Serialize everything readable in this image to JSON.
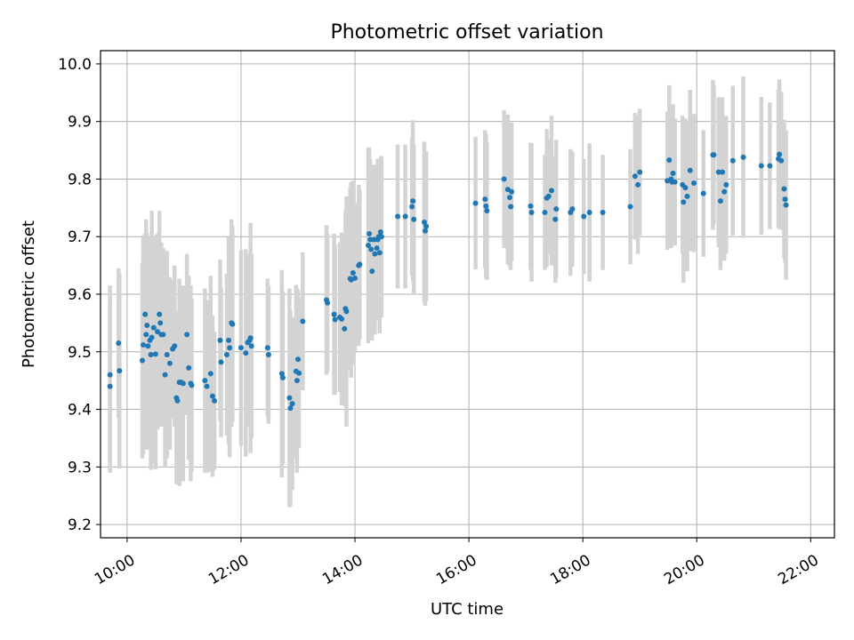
{
  "chart_data": {
    "type": "scatter",
    "title": "Photometric offset variation",
    "xlabel": "UTC time",
    "ylabel": "Photometric offset",
    "xlim": [
      "09:32",
      "22:25"
    ],
    "ylim": [
      9.177,
      10.023
    ],
    "x_ticks": [
      "10:00",
      "12:00",
      "14:00",
      "16:00",
      "18:00",
      "20:00",
      "22:00"
    ],
    "y_ticks": [
      "9.2",
      "9.3",
      "9.4",
      "9.5",
      "9.6",
      "9.7",
      "9.8",
      "9.9",
      "10.0"
    ],
    "grid": true,
    "colors": {
      "points": "#1f77b4",
      "errorbars": "#d3d3d3",
      "grid": "#b0b0b0"
    },
    "points": [
      [
        "09:42",
        9.46,
        0.155
      ],
      [
        "09:42",
        9.44,
        0.15
      ],
      [
        "09:51",
        9.515,
        0.13
      ],
      [
        "09:52",
        9.467,
        0.17
      ],
      [
        "10:16",
        9.485,
        0.17
      ],
      [
        "10:17",
        9.512,
        0.19
      ],
      [
        "10:19",
        9.565,
        0.14
      ],
      [
        "10:20",
        9.53,
        0.2
      ],
      [
        "10:21",
        9.546,
        0.16
      ],
      [
        "10:22",
        9.51,
        0.18
      ],
      [
        "10:24",
        9.52,
        0.18
      ],
      [
        "10:25",
        9.495,
        0.2
      ],
      [
        "10:26",
        9.525,
        0.22
      ],
      [
        "10:28",
        9.542,
        0.16
      ],
      [
        "10:30",
        9.496,
        0.2
      ],
      [
        "10:32",
        9.535,
        0.17
      ],
      [
        "10:34",
        9.565,
        0.18
      ],
      [
        "10:35",
        9.55,
        0.14
      ],
      [
        "10:36",
        9.53,
        0.16
      ],
      [
        "10:38",
        9.53,
        0.15
      ],
      [
        "10:40",
        9.46,
        0.16
      ],
      [
        "10:42",
        9.495,
        0.18
      ],
      [
        "10:45",
        9.48,
        0.15
      ],
      [
        "10:48",
        9.505,
        0.12
      ],
      [
        "10:50",
        9.51,
        0.14
      ],
      [
        "10:52",
        9.42,
        0.15
      ],
      [
        "10:53",
        9.415,
        0.14
      ],
      [
        "10:55",
        9.447,
        0.18
      ],
      [
        "10:57",
        9.447,
        0.16
      ],
      [
        "10:59",
        9.445,
        0.17
      ],
      [
        "11:03",
        9.53,
        0.14
      ],
      [
        "11:05",
        9.472,
        0.16
      ],
      [
        "11:07",
        9.445,
        0.17
      ],
      [
        "11:08",
        9.442,
        0.15
      ],
      [
        "11:22",
        9.45,
        0.16
      ],
      [
        "11:24",
        9.44,
        0.15
      ],
      [
        "11:28",
        9.462,
        0.17
      ],
      [
        "11:30",
        9.423,
        0.14
      ],
      [
        "11:32",
        9.415,
        0.12
      ],
      [
        "11:38",
        9.52,
        0.14
      ],
      [
        "11:39",
        9.482,
        0.13
      ],
      [
        "11:45",
        9.495,
        0.14
      ],
      [
        "11:47",
        9.52,
        0.18
      ],
      [
        "11:48",
        9.507,
        0.19
      ],
      [
        "11:50",
        9.55,
        0.18
      ],
      [
        "11:51",
        9.548,
        0.17
      ],
      [
        "12:00",
        9.507,
        0.17
      ],
      [
        "12:05",
        9.498,
        0.18
      ],
      [
        "12:07",
        9.516,
        0.14
      ],
      [
        "12:09",
        9.52,
        0.15
      ],
      [
        "12:10",
        9.524,
        0.2
      ],
      [
        "12:11",
        9.51,
        0.16
      ],
      [
        "12:28",
        9.507,
        0.12
      ],
      [
        "12:29",
        9.495,
        0.12
      ],
      [
        "12:43",
        9.462,
        0.18
      ],
      [
        "12:44",
        9.455,
        0.15
      ],
      [
        "12:51",
        9.42,
        0.19
      ],
      [
        "12:52",
        9.402,
        0.17
      ],
      [
        "12:54",
        9.41,
        0.15
      ],
      [
        "12:58",
        9.466,
        0.15
      ],
      [
        "12:59",
        9.45,
        0.16
      ],
      [
        "13:00",
        9.487,
        0.12
      ],
      [
        "13:01",
        9.463,
        0.13
      ],
      [
        "13:05",
        9.553,
        0.12
      ],
      [
        "13:30",
        9.59,
        0.13
      ],
      [
        "13:31",
        9.585,
        0.12
      ],
      [
        "13:38",
        9.565,
        0.14
      ],
      [
        "13:39",
        9.556,
        0.13
      ],
      [
        "13:44",
        9.56,
        0.13
      ],
      [
        "13:46",
        9.557,
        0.15
      ],
      [
        "13:49",
        9.54,
        0.13
      ],
      [
        "13:50",
        9.575,
        0.17
      ],
      [
        "13:51",
        9.57,
        0.2
      ],
      [
        "13:55",
        9.627,
        0.16
      ],
      [
        "13:56",
        9.625,
        0.17
      ],
      [
        "13:58",
        9.637,
        0.16
      ],
      [
        "14:00",
        9.628,
        0.13
      ],
      [
        "14:04",
        9.65,
        0.14
      ],
      [
        "14:05",
        9.652,
        0.13
      ],
      [
        "14:14",
        9.685,
        0.17
      ],
      [
        "14:15",
        9.705,
        0.15
      ],
      [
        "14:16",
        9.695,
        0.14
      ],
      [
        "14:17",
        9.678,
        0.13
      ],
      [
        "14:18",
        9.64,
        0.12
      ],
      [
        "14:20",
        9.695,
        0.13
      ],
      [
        "14:21",
        9.67,
        0.14
      ],
      [
        "14:23",
        9.68,
        0.12
      ],
      [
        "14:24",
        9.695,
        0.14
      ],
      [
        "14:25",
        9.7,
        0.13
      ],
      [
        "14:26",
        9.672,
        0.14
      ],
      [
        "14:27",
        9.708,
        0.13
      ],
      [
        "14:28",
        9.7,
        0.14
      ],
      [
        "14:45",
        9.735,
        0.125
      ],
      [
        "14:53",
        9.735,
        0.125
      ],
      [
        "15:00",
        9.752,
        0.12
      ],
      [
        "15:01",
        9.762,
        0.14
      ],
      [
        "15:02",
        9.73,
        0.13
      ],
      [
        "15:13",
        9.725,
        0.14
      ],
      [
        "15:14",
        9.71,
        0.13
      ],
      [
        "15:15",
        9.718,
        0.13
      ],
      [
        "16:07",
        9.758,
        0.115
      ],
      [
        "16:17",
        9.765,
        0.12
      ],
      [
        "16:18",
        9.753,
        0.125
      ],
      [
        "16:19",
        9.745,
        0.12
      ],
      [
        "16:37",
        9.8,
        0.12
      ],
      [
        "16:41",
        9.782,
        0.13
      ],
      [
        "16:43",
        9.768,
        0.12
      ],
      [
        "16:44",
        9.752,
        0.11
      ],
      [
        "16:45",
        9.778,
        0.12
      ],
      [
        "17:05",
        9.753,
        0.11
      ],
      [
        "17:06",
        9.742,
        0.12
      ],
      [
        "17:20",
        9.742,
        0.1
      ],
      [
        "17:22",
        9.767,
        0.12
      ],
      [
        "17:24",
        9.77,
        0.1
      ],
      [
        "17:27",
        9.78,
        0.13
      ],
      [
        "17:31",
        9.73,
        0.11
      ],
      [
        "17:32",
        9.748,
        0.12
      ],
      [
        "17:47",
        9.742,
        0.11
      ],
      [
        "17:49",
        9.748,
        0.1
      ],
      [
        "18:01",
        9.735,
        0.1
      ],
      [
        "18:07",
        9.742,
        0.12
      ],
      [
        "18:21",
        9.742,
        0.1
      ],
      [
        "18:50",
        9.752,
        0.1
      ],
      [
        "18:55",
        9.805,
        0.11
      ],
      [
        "18:58",
        9.79,
        0.12
      ],
      [
        "19:00",
        9.812,
        0.11
      ],
      [
        "19:29",
        9.797,
        0.12
      ],
      [
        "19:31",
        9.833,
        0.13
      ],
      [
        "19:33",
        9.8,
        0.12
      ],
      [
        "19:34",
        9.795,
        0.11
      ],
      [
        "19:35",
        9.81,
        0.12
      ],
      [
        "19:37",
        9.795,
        0.11
      ],
      [
        "19:45",
        9.79,
        0.12
      ],
      [
        "19:46",
        9.76,
        0.14
      ],
      [
        "19:48",
        9.785,
        0.12
      ],
      [
        "19:50",
        9.77,
        0.13
      ],
      [
        "19:53",
        9.815,
        0.14
      ],
      [
        "19:57",
        9.793,
        0.12
      ],
      [
        "20:07",
        9.775,
        0.11
      ],
      [
        "20:17",
        9.842,
        0.13
      ],
      [
        "20:18",
        9.842,
        0.12
      ],
      [
        "20:23",
        9.812,
        0.13
      ],
      [
        "20:25",
        9.762,
        0.12
      ],
      [
        "20:27",
        9.812,
        0.13
      ],
      [
        "20:29",
        9.778,
        0.12
      ],
      [
        "20:31",
        9.79,
        0.12
      ],
      [
        "20:38",
        9.832,
        0.13
      ],
      [
        "20:49",
        9.838,
        0.14
      ],
      [
        "21:08",
        9.823,
        0.12
      ],
      [
        "21:17",
        9.823,
        0.11
      ],
      [
        "21:26",
        9.835,
        0.12
      ],
      [
        "21:27",
        9.843,
        0.13
      ],
      [
        "21:29",
        9.832,
        0.12
      ],
      [
        "21:32",
        9.783,
        0.12
      ],
      [
        "21:33",
        9.765,
        0.11
      ],
      [
        "21:34",
        9.755,
        0.13
      ]
    ]
  }
}
